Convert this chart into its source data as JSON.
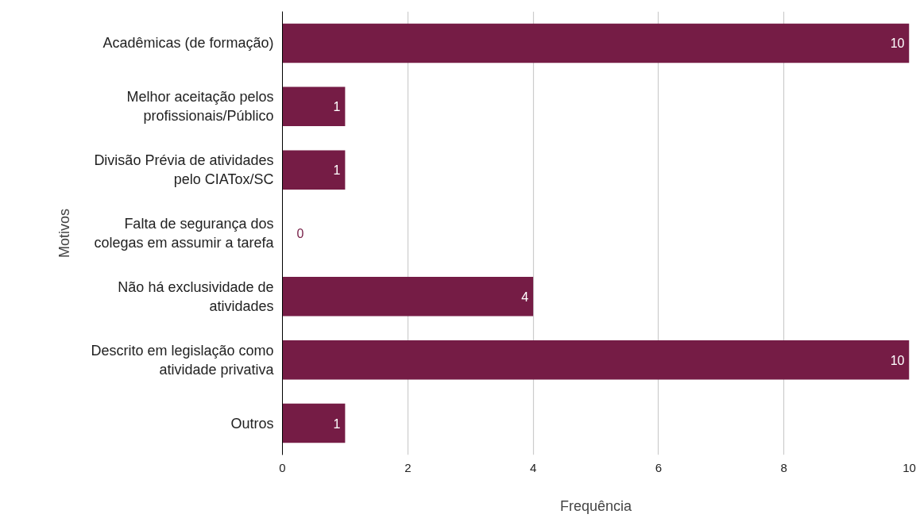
{
  "chart_data": {
    "type": "bar",
    "orientation": "horizontal",
    "categories": [
      "Acadêmicas (de formação)",
      "Melhor aceitação pelos profissionais/Público",
      "Divisão Prévia de atividades pelo CIATox/SC",
      "Falta de segurança dos colegas em assumir a tarefa",
      "Não há exclusividade de atividades",
      "Descrito em legislação como atividade privativa",
      "Outros"
    ],
    "values": [
      10,
      1,
      1,
      0,
      4,
      10,
      1
    ],
    "color": "#751c45",
    "xlim": [
      0,
      10
    ],
    "xticks": [
      0,
      2,
      4,
      6,
      8,
      10
    ],
    "xlabel": "Frequência",
    "ylabel": "Motivos",
    "grid": "x",
    "data_labels": true
  }
}
